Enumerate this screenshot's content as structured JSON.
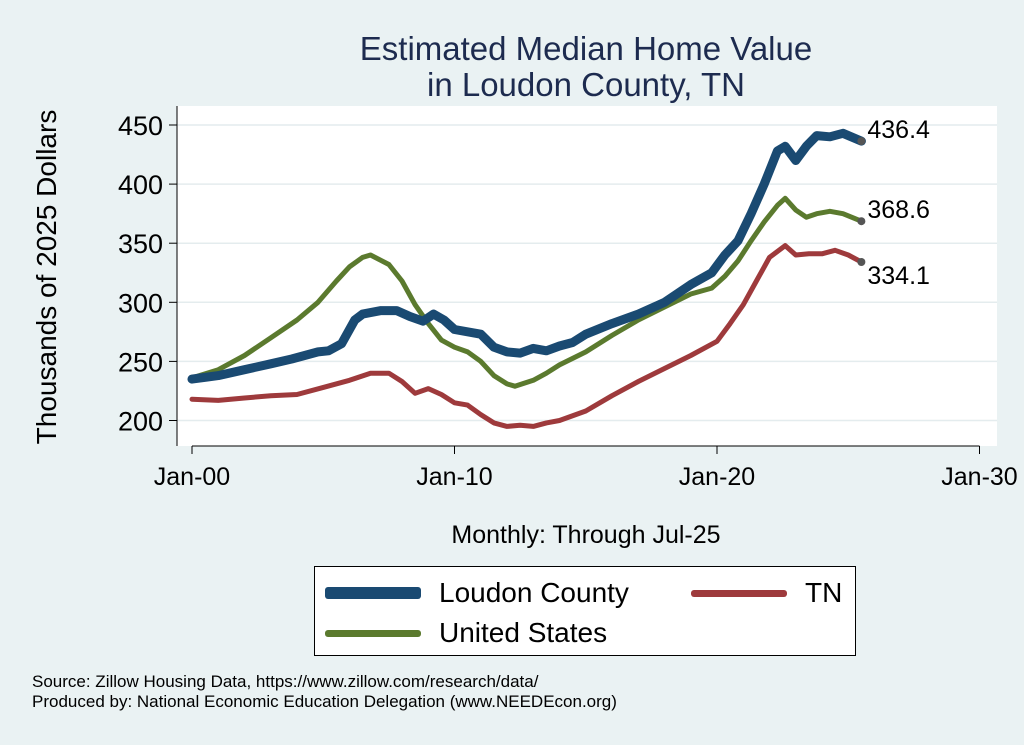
{
  "chart_data": {
    "type": "line",
    "title": [
      "Estimated Median Home Value",
      "in Loudon County, TN"
    ],
    "ylabel": "Thousands of 2025 Dollars",
    "xlabel": "Monthly: Through Jul-25",
    "x_ticks": [
      "Jan-00",
      "Jan-10",
      "Jan-20",
      "Jan-30"
    ],
    "x_tick_years": [
      2000,
      2010,
      2020,
      2030
    ],
    "y_ticks": [
      200,
      250,
      300,
      350,
      400,
      450
    ],
    "xlim": [
      2000,
      2030
    ],
    "ylim": [
      190,
      460
    ],
    "grid": true,
    "legend_position": "bottom",
    "series": [
      {
        "name": "Loudon County",
        "color": "#1a4a72",
        "end_label": "436.4",
        "points": [
          [
            2000.0,
            235
          ],
          [
            2001.0,
            238
          ],
          [
            2002.0,
            243
          ],
          [
            2003.0,
            248
          ],
          [
            2003.8,
            252
          ],
          [
            2004.8,
            258
          ],
          [
            2005.2,
            259
          ],
          [
            2005.7,
            265
          ],
          [
            2006.2,
            285
          ],
          [
            2006.5,
            290
          ],
          [
            2007.2,
            293
          ],
          [
            2007.8,
            293
          ],
          [
            2008.3,
            288
          ],
          [
            2008.8,
            284
          ],
          [
            2009.2,
            290
          ],
          [
            2009.6,
            285
          ],
          [
            2010.0,
            277
          ],
          [
            2011.0,
            273
          ],
          [
            2011.5,
            262
          ],
          [
            2012.0,
            258
          ],
          [
            2012.5,
            257
          ],
          [
            2013.0,
            261
          ],
          [
            2013.5,
            259
          ],
          [
            2014.0,
            263
          ],
          [
            2014.5,
            266
          ],
          [
            2015.0,
            273
          ],
          [
            2016.0,
            282
          ],
          [
            2017.0,
            290
          ],
          [
            2018.0,
            300
          ],
          [
            2019.0,
            315
          ],
          [
            2019.8,
            325
          ],
          [
            2020.3,
            340
          ],
          [
            2020.8,
            352
          ],
          [
            2021.3,
            375
          ],
          [
            2021.8,
            400
          ],
          [
            2022.3,
            428
          ],
          [
            2022.6,
            432
          ],
          [
            2023.0,
            420
          ],
          [
            2023.4,
            432
          ],
          [
            2023.8,
            441
          ],
          [
            2024.3,
            440
          ],
          [
            2024.8,
            443
          ],
          [
            2025.5,
            436.4
          ]
        ]
      },
      {
        "name": "United States",
        "color": "#5b7a2e",
        "end_label": "368.6",
        "points": [
          [
            2000.0,
            236
          ],
          [
            2001.0,
            243
          ],
          [
            2002.0,
            255
          ],
          [
            2003.0,
            270
          ],
          [
            2004.0,
            285
          ],
          [
            2004.8,
            300
          ],
          [
            2005.5,
            318
          ],
          [
            2006.0,
            330
          ],
          [
            2006.5,
            338
          ],
          [
            2006.8,
            340
          ],
          [
            2007.5,
            332
          ],
          [
            2008.0,
            318
          ],
          [
            2008.5,
            298
          ],
          [
            2009.0,
            282
          ],
          [
            2009.5,
            268
          ],
          [
            2010.0,
            262
          ],
          [
            2010.5,
            258
          ],
          [
            2011.0,
            250
          ],
          [
            2011.5,
            238
          ],
          [
            2012.0,
            231
          ],
          [
            2012.3,
            229
          ],
          [
            2013.0,
            234
          ],
          [
            2013.5,
            240
          ],
          [
            2014.0,
            247
          ],
          [
            2015.0,
            258
          ],
          [
            2016.0,
            272
          ],
          [
            2017.0,
            285
          ],
          [
            2018.0,
            296
          ],
          [
            2019.0,
            307
          ],
          [
            2019.8,
            312
          ],
          [
            2020.3,
            322
          ],
          [
            2020.8,
            335
          ],
          [
            2021.3,
            352
          ],
          [
            2021.8,
            368
          ],
          [
            2022.3,
            382
          ],
          [
            2022.6,
            388
          ],
          [
            2023.0,
            378
          ],
          [
            2023.4,
            372
          ],
          [
            2023.8,
            375
          ],
          [
            2024.3,
            377
          ],
          [
            2024.8,
            375
          ],
          [
            2025.5,
            368.6
          ]
        ]
      },
      {
        "name": "TN",
        "color": "#9e3a3c",
        "end_label": "334.1",
        "points": [
          [
            2000.0,
            218
          ],
          [
            2001.0,
            217
          ],
          [
            2002.0,
            219
          ],
          [
            2003.0,
            221
          ],
          [
            2004.0,
            222
          ],
          [
            2005.0,
            228
          ],
          [
            2006.0,
            234
          ],
          [
            2006.8,
            240
          ],
          [
            2007.5,
            240
          ],
          [
            2008.0,
            233
          ],
          [
            2008.5,
            223
          ],
          [
            2009.0,
            227
          ],
          [
            2009.5,
            222
          ],
          [
            2010.0,
            215
          ],
          [
            2010.5,
            213
          ],
          [
            2011.0,
            205
          ],
          [
            2011.5,
            198
          ],
          [
            2012.0,
            195
          ],
          [
            2012.5,
            196
          ],
          [
            2013.0,
            195
          ],
          [
            2013.5,
            198
          ],
          [
            2014.0,
            200
          ],
          [
            2015.0,
            208
          ],
          [
            2016.0,
            221
          ],
          [
            2017.0,
            233
          ],
          [
            2018.0,
            244
          ],
          [
            2019.0,
            255
          ],
          [
            2020.0,
            267
          ],
          [
            2020.5,
            282
          ],
          [
            2021.0,
            298
          ],
          [
            2021.5,
            318
          ],
          [
            2022.0,
            338
          ],
          [
            2022.6,
            348
          ],
          [
            2023.0,
            340
          ],
          [
            2023.5,
            341
          ],
          [
            2024.0,
            341
          ],
          [
            2024.5,
            344
          ],
          [
            2025.0,
            340
          ],
          [
            2025.5,
            334.1
          ]
        ]
      }
    ]
  },
  "legend": {
    "items": [
      {
        "label": "Loudon County"
      },
      {
        "label": "TN"
      },
      {
        "label": "United States"
      }
    ]
  },
  "source": {
    "line1": "Source: Zillow Housing Data, https://www.zillow.com/research/data/",
    "line2": "Produced by: National Economic Education Delegation (www.NEEDEcon.org)"
  }
}
